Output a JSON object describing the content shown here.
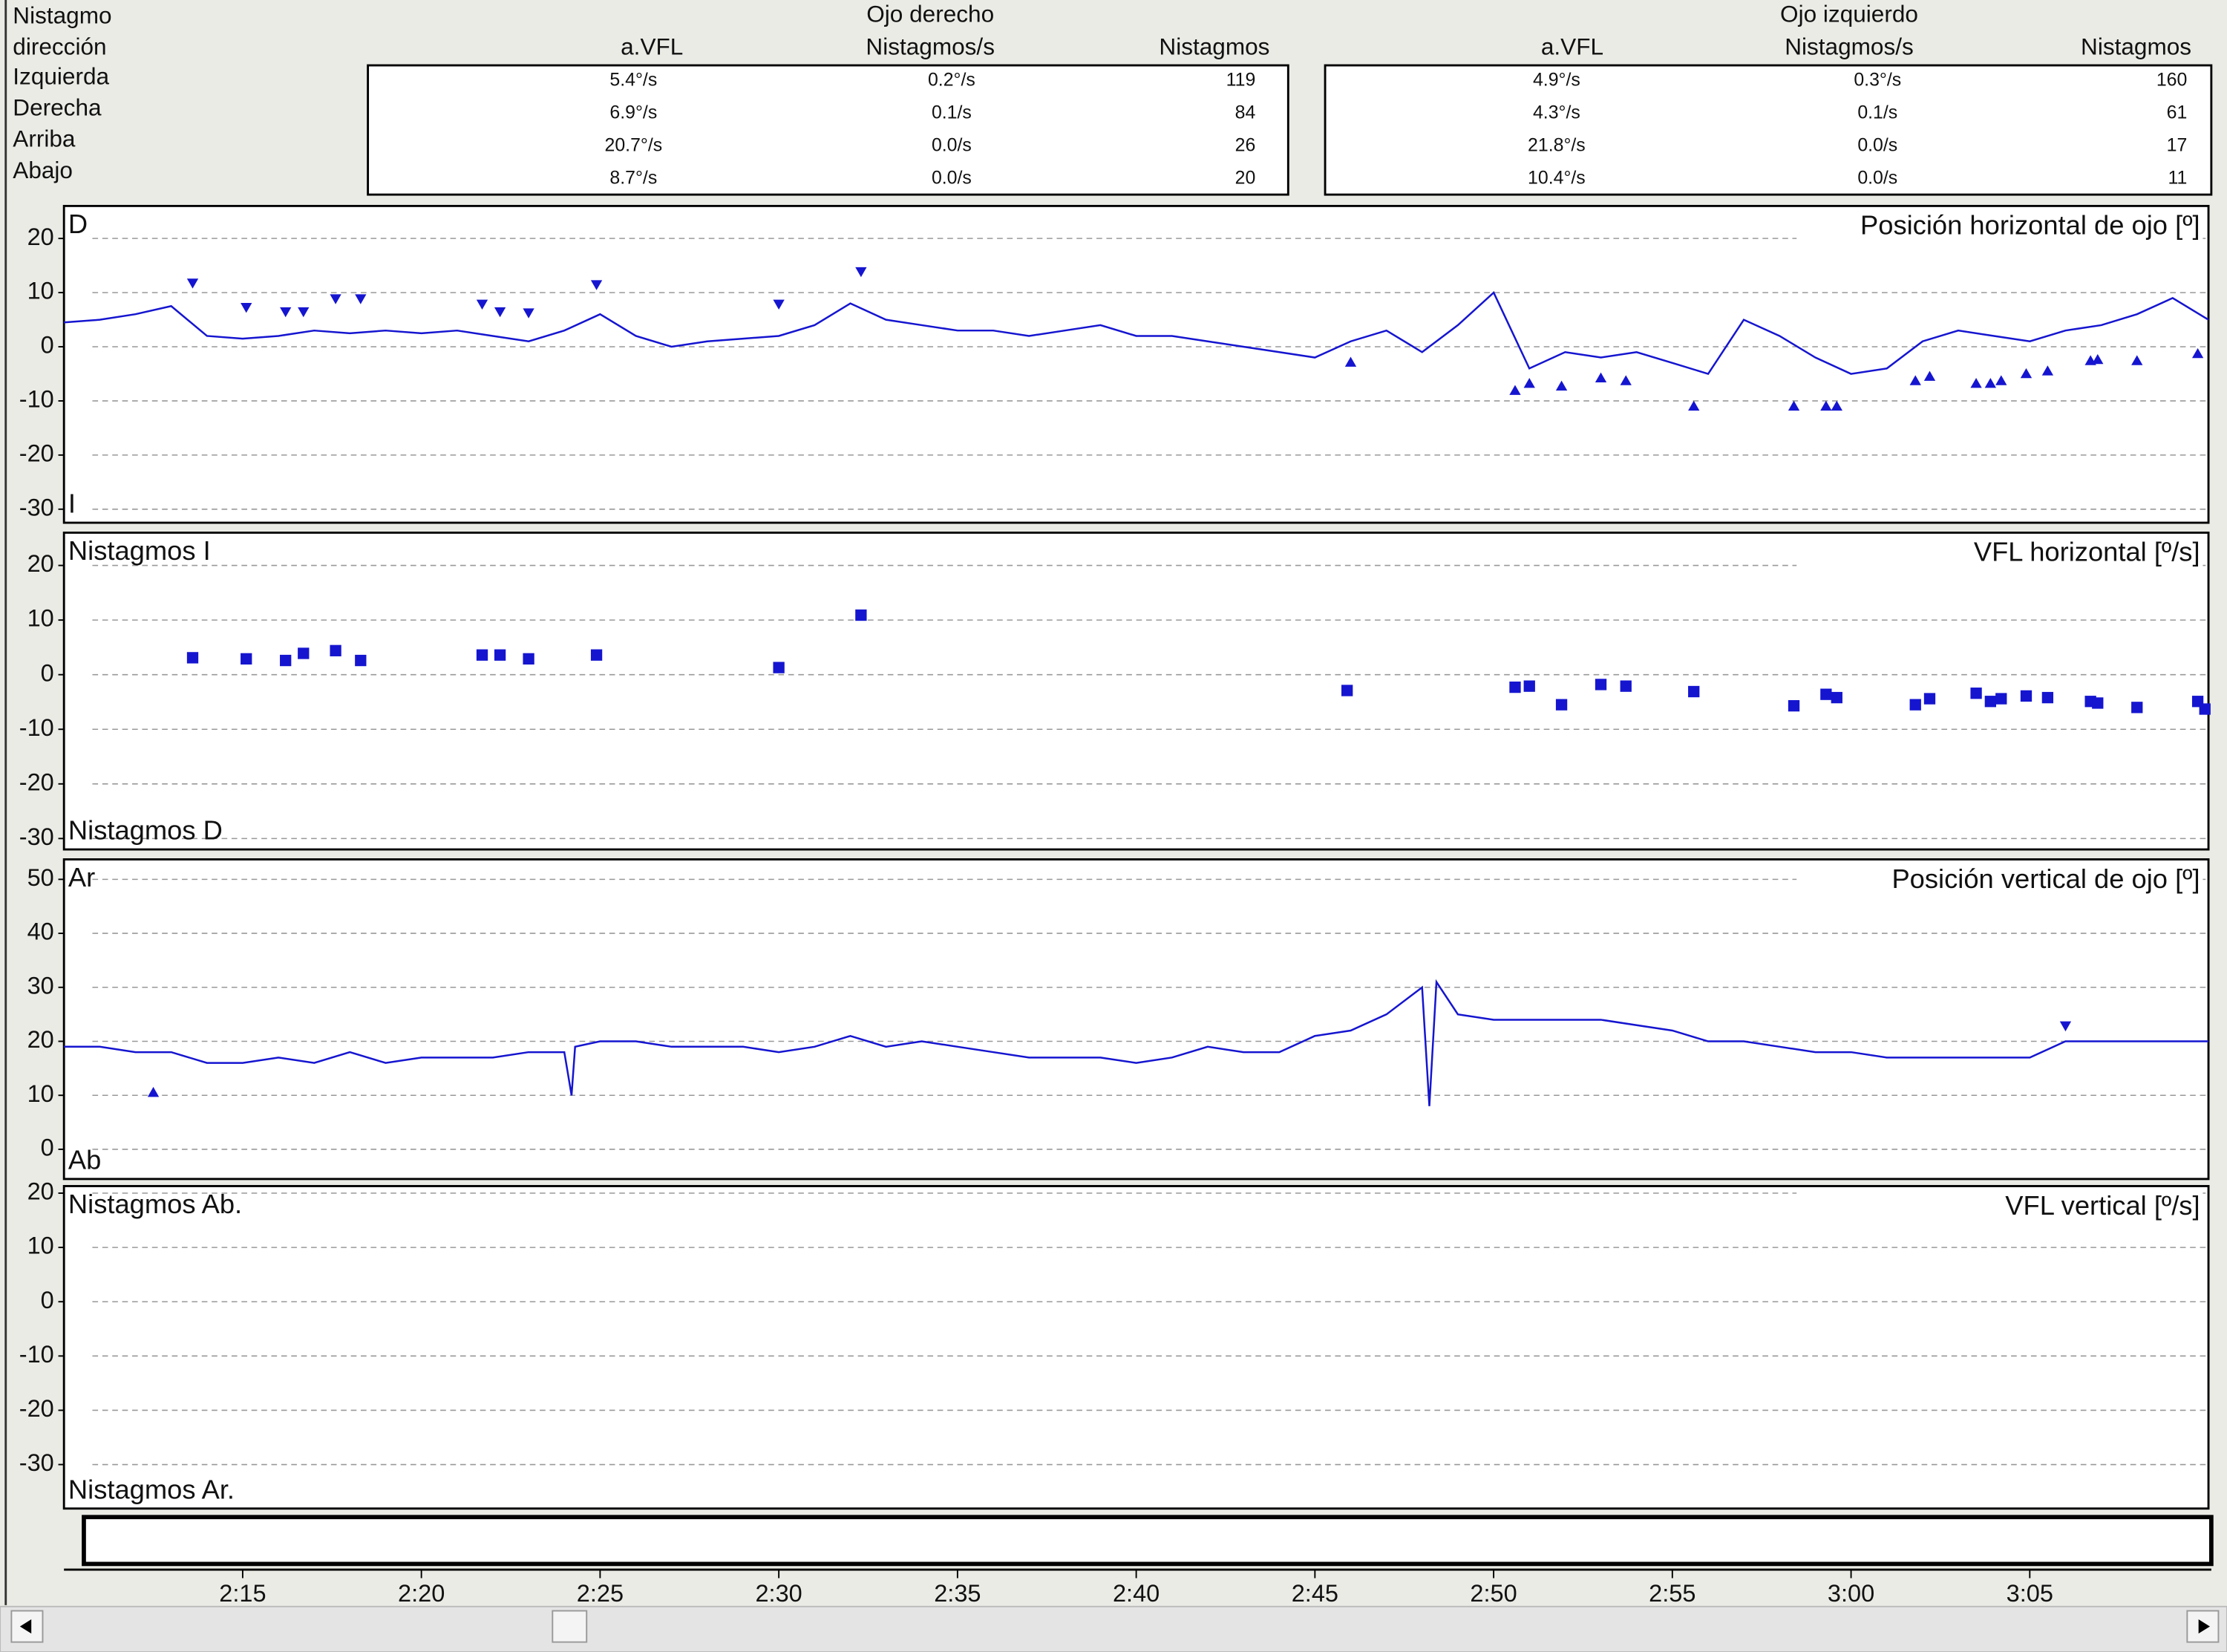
{
  "table": {
    "header": [
      "Nistagmo",
      "dirección"
    ],
    "row_labels": [
      "Izquierda",
      "Derecha",
      "Arriba",
      "Abajo"
    ],
    "groups": [
      {
        "name": "Ojo derecho",
        "color": "#d93a3a",
        "columns": [
          "a.VFL",
          "Nistagmos/s",
          "Nistagmos"
        ],
        "rows": [
          [
            "5.4°/s",
            "0.2°/s",
            "119"
          ],
          [
            "6.9°/s",
            "0.1/s",
            "84"
          ],
          [
            "20.7°/s",
            "0.0/s",
            "26"
          ],
          [
            "8.7°/s",
            "0.0/s",
            "20"
          ]
        ]
      },
      {
        "name": "Ojo izquierdo",
        "color": "#1f1fc8",
        "columns": [
          "a.VFL",
          "Nistagmos/s",
          "Nistagmos"
        ],
        "rows": [
          [
            "4.9°/s",
            "0.3°/s",
            "160"
          ],
          [
            "4.3°/s",
            "0.1/s",
            "61"
          ],
          [
            "21.8°/s",
            "0.0/s",
            "17"
          ],
          [
            "10.4°/s",
            "0.0/s",
            "11"
          ]
        ]
      }
    ]
  },
  "x_axis": {
    "xlim": [
      130,
      190
    ],
    "xticks": [
      {
        "value": 135,
        "label": "2:15"
      },
      {
        "value": 140,
        "label": "2:20"
      },
      {
        "value": 145,
        "label": "2:25"
      },
      {
        "value": 150,
        "label": "2:30"
      },
      {
        "value": 155,
        "label": "2:35"
      },
      {
        "value": 160,
        "label": "2:40"
      },
      {
        "value": 165,
        "label": "2:45"
      },
      {
        "value": 170,
        "label": "2:50"
      },
      {
        "value": 175,
        "label": "2:55"
      },
      {
        "value": 180,
        "label": "3:00"
      },
      {
        "value": 185,
        "label": "3:05"
      }
    ]
  },
  "chart_data": [
    {
      "type": "line",
      "title": "Posición horizontal de ojo [º]",
      "top_label": "D",
      "bottom_label": "I",
      "ylim": [
        -32.5,
        26
      ],
      "yticks": [
        20,
        10,
        0,
        -10,
        -20,
        -30
      ],
      "grid": true,
      "series": [
        {
          "marker": "line",
          "color": "#1515d0",
          "x": [
            130,
            131,
            132,
            133,
            134,
            135,
            136,
            137,
            138,
            139,
            140,
            141,
            142,
            143,
            144,
            145,
            146,
            147,
            148,
            149,
            150,
            151,
            152,
            153,
            154,
            155,
            156,
            157,
            158,
            159,
            160,
            161,
            162,
            163,
            164,
            165,
            166,
            167,
            168,
            169,
            170,
            171,
            172,
            173,
            174,
            175,
            176,
            177,
            178,
            179,
            180,
            181,
            182,
            183,
            184,
            185,
            186,
            187,
            188,
            189,
            190
          ],
          "values": [
            4.5,
            5,
            6,
            7.5,
            2,
            1.5,
            2,
            3,
            2.5,
            3,
            2.5,
            3,
            2,
            1,
            3,
            6,
            2,
            0,
            1,
            1.5,
            2,
            4,
            8,
            5,
            4,
            3,
            3,
            2,
            3,
            4,
            2,
            2,
            1,
            0,
            -1,
            -2,
            1,
            3,
            -1,
            4,
            10,
            -4,
            -1,
            -2,
            -1,
            -3,
            -5,
            5,
            2,
            -2,
            -5,
            -4,
            1,
            3,
            2,
            1,
            3,
            4,
            6,
            9,
            5
          ]
        },
        {
          "marker": "triangle-down",
          "color": "#1515d0",
          "x": [
            133.6,
            135.1,
            136.2,
            136.7,
            137.6,
            138.3,
            141.7,
            142.2,
            143.0,
            144.9,
            150.0,
            152.3
          ],
          "values": [
            11.8,
            7.3,
            6.5,
            6.5,
            8.9,
            8.9,
            7.9,
            6.5,
            6.3,
            11.5,
            7.9,
            13.9
          ]
        },
        {
          "marker": "triangle-up",
          "color": "#1515d0",
          "x": [
            166.0,
            170.6,
            171.0,
            171.9,
            173.0,
            173.7,
            175.6,
            178.4,
            179.3,
            179.6,
            181.8,
            182.2,
            183.5,
            183.9,
            184.2,
            184.9,
            185.5,
            186.7,
            186.9,
            188.0,
            189.7
          ],
          "values": [
            -2.9,
            -8.1,
            -6.8,
            -7.3,
            -5.8,
            -6.3,
            -11,
            -11,
            -11,
            -11,
            -6.3,
            -5.5,
            -6.8,
            -6.8,
            -6.3,
            -5.0,
            -4.5,
            -2.6,
            -2.4,
            -2.6,
            -1.3
          ]
        }
      ]
    },
    {
      "type": "scatter",
      "title": "VFL horizontal [º/s]",
      "top_label": "Nistagmos I",
      "bottom_label": "Nistagmos D",
      "ylim": [
        -32,
        26
      ],
      "yticks": [
        20,
        10,
        0,
        -10,
        -20,
        -30
      ],
      "grid": true,
      "series": [
        {
          "marker": "square",
          "color": "#1515d0",
          "x": [
            133.6,
            135.1,
            136.2,
            136.7,
            137.6,
            138.3,
            141.7,
            142.2,
            143.0,
            144.9,
            150.0,
            152.3,
            165.9,
            170.6,
            171.0,
            171.9,
            173.0,
            173.7,
            175.6,
            178.4,
            179.3,
            179.6,
            181.8,
            182.2,
            183.5,
            183.9,
            184.2,
            184.9,
            185.5,
            186.7,
            186.9,
            188.0,
            189.7,
            189.9
          ],
          "values": [
            3.1,
            2.9,
            2.6,
            3.9,
            4.4,
            2.6,
            3.6,
            3.6,
            2.9,
            3.6,
            1.3,
            10.9,
            -2.9,
            -2.3,
            -2.1,
            -5.5,
            -1.8,
            -2.1,
            -3.1,
            -5.7,
            -3.6,
            -4.2,
            -5.5,
            -4.4,
            -3.4,
            -4.9,
            -4.4,
            -3.9,
            -4.2,
            -4.9,
            -5.2,
            -6.0,
            -4.9,
            -6.3
          ]
        }
      ]
    },
    {
      "type": "line",
      "title": "Posición vertical de ojo [º]",
      "top_label": "Ar",
      "bottom_label": "Ab",
      "ylim": [
        -5.5,
        53.7
      ],
      "yticks": [
        50,
        40,
        30,
        20,
        10,
        0
      ],
      "grid": true,
      "series": [
        {
          "marker": "line",
          "color": "#1515d0",
          "x": [
            130,
            131,
            132,
            133,
            134,
            135,
            136,
            137,
            138,
            139,
            140,
            141,
            142,
            143,
            144,
            144.2,
            144.3,
            145,
            146,
            147,
            148,
            149,
            150,
            151,
            152,
            153,
            154,
            155,
            156,
            157,
            158,
            159,
            160,
            161,
            162,
            163,
            164,
            165,
            166,
            167,
            168,
            168.2,
            168.4,
            169,
            170,
            171,
            172,
            173,
            174,
            175,
            176,
            177,
            178,
            179,
            180,
            181,
            182,
            183,
            184,
            185,
            186,
            187,
            188,
            189,
            190
          ],
          "values": [
            19,
            19,
            18,
            18,
            16,
            16,
            17,
            16,
            18,
            16,
            17,
            17,
            17,
            18,
            18,
            10,
            19,
            20,
            20,
            19,
            19,
            19,
            18,
            19,
            21,
            19,
            20,
            19,
            18,
            17,
            17,
            17,
            16,
            17,
            19,
            18,
            18,
            21,
            22,
            25,
            30,
            8,
            31,
            25,
            24,
            24,
            24,
            24,
            23,
            22,
            20,
            20,
            19,
            18,
            18,
            17,
            17,
            17,
            17,
            17,
            20,
            20,
            20,
            20,
            20
          ]
        },
        {
          "marker": "triangle-down",
          "color": "#1515d0",
          "x": [
            186.0
          ],
          "values": [
            22.9
          ]
        },
        {
          "marker": "triangle-up",
          "color": "#1515d0",
          "x": [
            132.5
          ],
          "values": [
            10.5
          ]
        }
      ]
    },
    {
      "type": "line",
      "title": "VFL vertical [º/s]",
      "top_label": "Nistagmos Ab.",
      "bottom_label": "Nistagmos Ar.",
      "ylim": [
        -38.1,
        21.3
      ],
      "yticks": [
        20,
        10,
        0,
        -10,
        -20,
        -30
      ],
      "grid": true,
      "series": []
    }
  ]
}
